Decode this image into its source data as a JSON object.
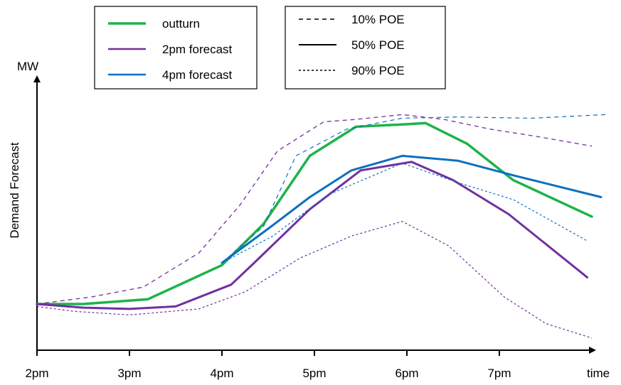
{
  "chart_data": {
    "type": "line",
    "title": "",
    "xlabel": "time",
    "ylabel": "Demand Forecast",
    "y_unit": "MW",
    "x_ticks": [
      "2pm",
      "3pm",
      "4pm",
      "5pm",
      "6pm",
      "7pm"
    ],
    "xlim": [
      2,
      8.2
    ],
    "ylim": [
      0,
      100
    ],
    "grid": false,
    "legend": {
      "series_box": [
        {
          "name": "outturn",
          "color": "#1db34a"
        },
        {
          "name": "2pm forecast",
          "color": "#7030a0"
        },
        {
          "name": "4pm forecast",
          "color": "#0b6fc1"
        }
      ],
      "poe_box": [
        {
          "name": "10% POE",
          "dash": "6,5"
        },
        {
          "name": "50% POE",
          "dash": ""
        },
        {
          "name": "90% POE",
          "dash": "3,3"
        }
      ]
    },
    "series": [
      {
        "key": "outturn",
        "color": "#1db34a",
        "width": 3.5,
        "dash": "",
        "x": [
          2.0,
          2.5,
          3.2,
          4.0,
          4.45,
          4.95,
          5.45,
          6.0,
          6.2,
          6.65,
          7.15,
          8.0
        ],
        "y": [
          19,
          19,
          21,
          35,
          52,
          80,
          92,
          93,
          93.5,
          85,
          70,
          55
        ]
      },
      {
        "key": "2pm forecast 50% POE",
        "color": "#7030a0",
        "width": 3,
        "dash": "",
        "x": [
          2.0,
          2.5,
          3.0,
          3.5,
          4.1,
          4.35,
          4.95,
          5.5,
          6.05,
          6.5,
          7.1,
          7.95
        ],
        "y": [
          19,
          17.5,
          17,
          18,
          27,
          36,
          58,
          74,
          77.5,
          70,
          56,
          30
        ]
      },
      {
        "key": "2pm forecast 10% POE",
        "color": "#7030a0",
        "width": 1.3,
        "dash": "6,5",
        "x": [
          2.0,
          2.6,
          3.15,
          3.75,
          4.2,
          4.6,
          5.1,
          5.45,
          5.95,
          6.4,
          6.9,
          7.4,
          8.0
        ],
        "y": [
          19,
          22,
          26,
          40,
          60,
          82,
          94,
          95,
          97,
          95,
          91,
          88,
          84
        ]
      },
      {
        "key": "2pm forecast 90% POE",
        "color": "#7030a0",
        "width": 1.2,
        "dash": "3,3",
        "x": [
          2.0,
          2.4,
          3.0,
          3.75,
          4.25,
          4.85,
          5.4,
          5.95,
          6.45,
          7.05,
          7.5,
          8.0
        ],
        "y": [
          18,
          16,
          14.5,
          17,
          24,
          38,
          47,
          53,
          43,
          22,
          11,
          5
        ]
      },
      {
        "key": "4pm forecast 50% POE",
        "color": "#0b6fc1",
        "width": 3,
        "dash": "",
        "x": [
          4.0,
          4.5,
          4.95,
          5.4,
          5.95,
          6.55,
          7.15,
          8.1
        ],
        "y": [
          36,
          50,
          63,
          74,
          80,
          78,
          72,
          63
        ]
      },
      {
        "key": "4pm forecast 10% POE",
        "color": "#0b6fc1",
        "width": 1.2,
        "dash": "6,5",
        "x": [
          4.0,
          4.45,
          4.8,
          5.35,
          5.95,
          6.55,
          7.35,
          8.15
        ],
        "y": [
          36,
          51,
          80,
          91,
          95.5,
          96,
          95.5,
          97
        ]
      },
      {
        "key": "4pm forecast 90% POE",
        "color": "#0b6fc1",
        "width": 1.2,
        "dash": "3,3",
        "x": [
          4.0,
          4.55,
          5.15,
          5.95,
          6.55,
          7.15,
          7.95
        ],
        "y": [
          36,
          47,
          64,
          77,
          69,
          62,
          45
        ]
      }
    ]
  }
}
